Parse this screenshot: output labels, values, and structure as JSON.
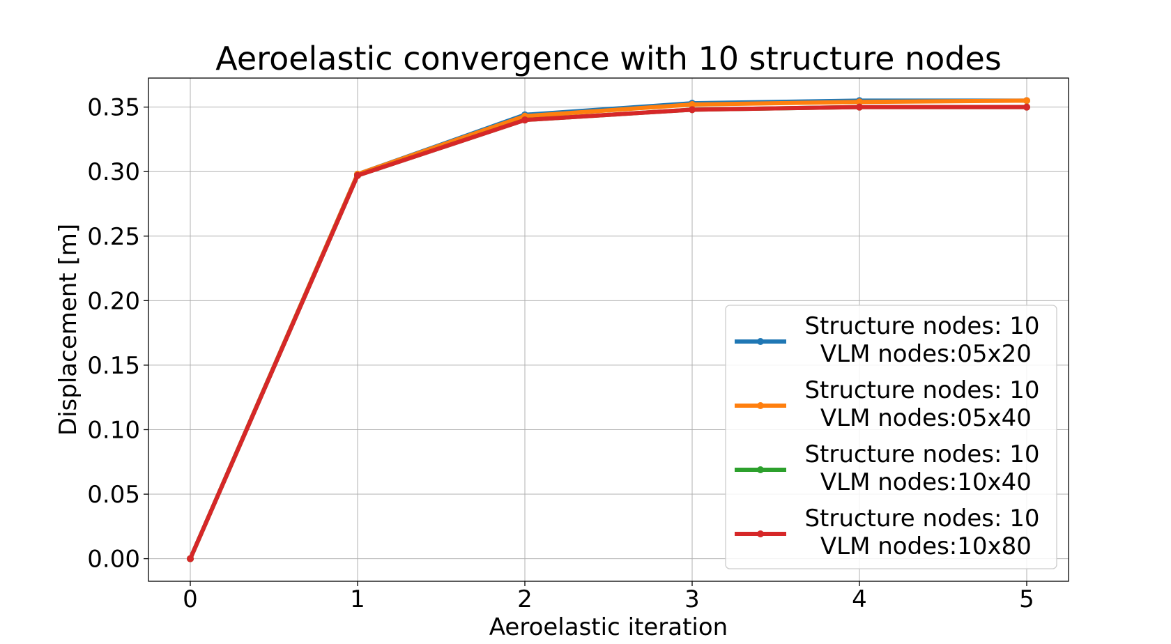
{
  "chart_data": {
    "type": "line",
    "title": "Aeroelastic convergence with 10 structure nodes",
    "xlabel": "Aeroelastic iteration",
    "ylabel": "Displacement [m]",
    "xlim": [
      -0.25,
      5.25
    ],
    "ylim": [
      -0.0175,
      0.3725
    ],
    "x_ticks": [
      0,
      1,
      2,
      3,
      4,
      5
    ],
    "x_tick_labels": [
      "0",
      "1",
      "2",
      "3",
      "4",
      "5"
    ],
    "y_ticks": [
      0.0,
      0.05,
      0.1,
      0.15,
      0.2,
      0.25,
      0.3,
      0.35
    ],
    "y_tick_labels": [
      "0.00",
      "0.05",
      "0.10",
      "0.15",
      "0.20",
      "0.25",
      "0.30",
      "0.35"
    ],
    "grid": true,
    "legend_position": "lower-right",
    "x": [
      0,
      1,
      2,
      3,
      4,
      5
    ],
    "series": [
      {
        "name": "Structure nodes: 10\n VLM nodes:05x20",
        "color": "#1f77b4",
        "values": [
          0.0,
          0.298,
          0.344,
          0.353,
          0.355,
          0.355
        ]
      },
      {
        "name": "Structure nodes: 10\n VLM nodes:05x40",
        "color": "#ff7f0e",
        "values": [
          0.0,
          0.298,
          0.343,
          0.352,
          0.354,
          0.355
        ]
      },
      {
        "name": "Structure nodes: 10\n VLM nodes:10x40",
        "color": "#2ca02c",
        "values": [
          0.0,
          0.297,
          0.34,
          0.348,
          0.35,
          0.35
        ]
      },
      {
        "name": "Structure nodes: 10\n VLM nodes:10x80",
        "color": "#d62728",
        "values": [
          0.0,
          0.297,
          0.34,
          0.348,
          0.35,
          0.35
        ]
      }
    ]
  }
}
